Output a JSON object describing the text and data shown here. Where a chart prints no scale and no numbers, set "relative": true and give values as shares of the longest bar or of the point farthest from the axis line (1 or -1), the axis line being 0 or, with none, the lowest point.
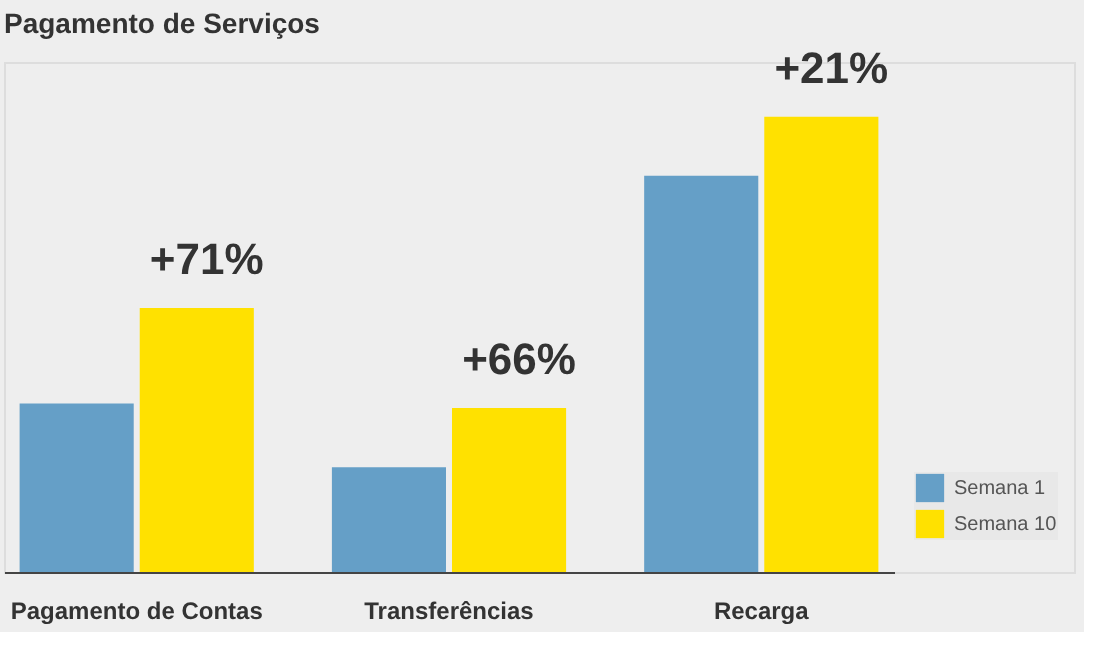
{
  "chart_data": {
    "type": "bar",
    "title": "Pagamento de Serviços",
    "relative": true,
    "categories": [
      "Pagamento de Contas",
      "Transferências",
      "Recarga"
    ],
    "series": [
      {
        "name": "Semana 1",
        "color": "#659fc7",
        "values": [
          0.37,
          0.23,
          0.87
        ]
      },
      {
        "name": "Semana 10",
        "color": "#ffe100",
        "values": [
          0.58,
          0.36,
          1
        ]
      }
    ],
    "annotations": [
      {
        "text": "+71%",
        "x": "Pagamento de Contas",
        "y": 0.58
      },
      {
        "text": "+66%",
        "x": "Transferências",
        "y": 0.36
      },
      {
        "text": "+21%",
        "x": "Recarga",
        "y": 1
      }
    ],
    "legend": "bottom right",
    "grid": false
  }
}
